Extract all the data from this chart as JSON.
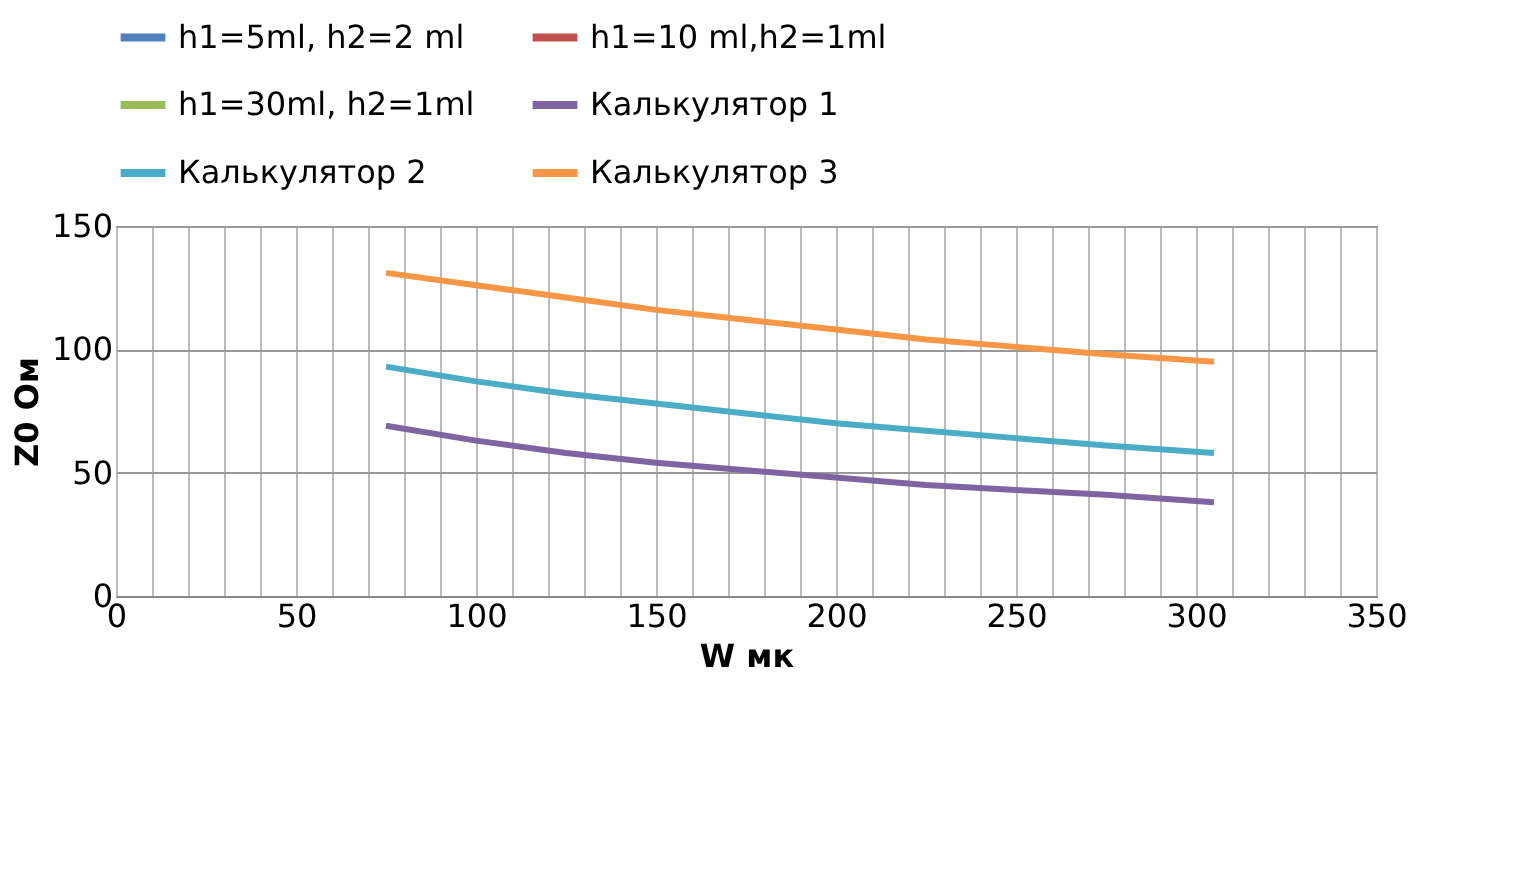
{
  "chart_data": {
    "type": "line",
    "xlabel": "W мк",
    "ylabel": "Z0 Ом",
    "x": [
      75,
      100,
      125,
      150,
      175,
      200,
      225,
      250,
      275,
      305
    ],
    "series": [
      {
        "name": "h1=5ml, h2=2 ml",
        "color": "#4f81bd",
        "values": [
          null,
          null,
          null,
          null,
          null,
          null,
          null,
          null,
          null,
          null
        ]
      },
      {
        "name": "h1=10 ml,h2=1ml",
        "color": "#c0504d",
        "values": [
          null,
          null,
          null,
          null,
          null,
          null,
          null,
          null,
          null,
          null
        ]
      },
      {
        "name": "h1=30ml, h2=1ml",
        "color": "#9bbb59",
        "values": [
          null,
          null,
          null,
          null,
          null,
          null,
          null,
          null,
          null,
          null
        ]
      },
      {
        "name": "Калькулятор 1",
        "color": "#8064a2",
        "values": [
          69,
          63,
          58,
          54,
          51,
          48,
          45,
          43,
          41,
          38
        ]
      },
      {
        "name": "Калькулятор 2",
        "color": "#4bacc6",
        "values": [
          93,
          87,
          82,
          78,
          74,
          70,
          67,
          64,
          61,
          58
        ]
      },
      {
        "name": "Калькулятор 3",
        "color": "#f79646",
        "values": [
          131,
          126,
          121,
          116,
          112,
          108,
          104,
          101,
          98,
          95
        ]
      }
    ],
    "xlim": [
      0,
      350
    ],
    "xticks": [
      0,
      {
        "value": 10,
        "label": null
      },
      {
        "value": 20,
        "label": null
      },
      {
        "value": 30,
        "label": null
      },
      {
        "value": 40,
        "label": null
      },
      50,
      {
        "value": 60,
        "label": null
      },
      {
        "value": 70,
        "label": null
      },
      {
        "value": 80,
        "label": null
      },
      {
        "value": 90,
        "label": null
      },
      100,
      {
        "value": 110,
        "label": null
      },
      {
        "value": 120,
        "label": null
      },
      {
        "value": 130,
        "label": null
      },
      {
        "value": 140,
        "label": null
      },
      150,
      {
        "value": 160,
        "label": null
      },
      {
        "value": 170,
        "label": null
      },
      {
        "value": 180,
        "label": null
      },
      {
        "value": 190,
        "label": null
      },
      200,
      {
        "value": 210,
        "label": null
      },
      {
        "value": 220,
        "label": null
      },
      {
        "value": 230,
        "label": null
      },
      {
        "value": 240,
        "label": null
      },
      250,
      {
        "value": 260,
        "label": null
      },
      {
        "value": 270,
        "label": null
      },
      {
        "value": 280,
        "label": null
      },
      {
        "value": 290,
        "label": null
      },
      300,
      {
        "value": 310,
        "label": null
      },
      {
        "value": 320,
        "label": null
      },
      {
        "value": 330,
        "label": null
      },
      {
        "value": 340,
        "label": null
      },
      350
    ],
    "ylim": [
      0,
      150
    ],
    "yticks": [
      0,
      50,
      100,
      150
    ],
    "grid": true,
    "legend": "top",
    "marker": "none",
    "line_style": "solid"
  }
}
